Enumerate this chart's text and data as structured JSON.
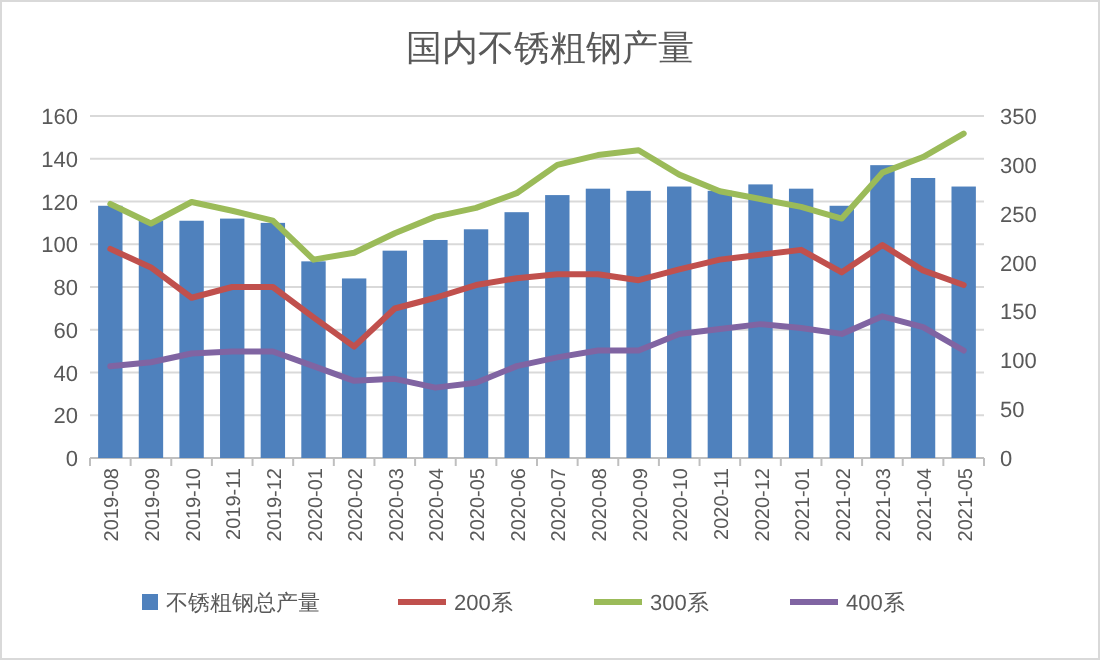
{
  "chart_data": {
    "type": "bar",
    "title": "国内不锈粗钢产量",
    "categories": [
      "2019-08",
      "2019-09",
      "2019-10",
      "2019-11",
      "2019-12",
      "2020-01",
      "2020-02",
      "2020-03",
      "2020-04",
      "2020-05",
      "2020-06",
      "2020-07",
      "2020-08",
      "2020-09",
      "2020-10",
      "2020-11",
      "2020-12",
      "2021-01",
      "2021-02",
      "2021-03",
      "2021-04",
      "2021-05"
    ],
    "series": [
      {
        "name": "不锈粗钢总产量",
        "color": "#4f81bd",
        "values": [
          118,
          111,
          111,
          112,
          110,
          92,
          84,
          97,
          102,
          107,
          115,
          123,
          126,
          125,
          127,
          125,
          128,
          126,
          118,
          137,
          131,
          127
        ]
      },
      {
        "name": "200系",
        "type": "line",
        "axis": "y2",
        "color": "#c0504d",
        "values": [
          214,
          195,
          164,
          175,
          175,
          144,
          114,
          153,
          164,
          177,
          184,
          188,
          188,
          182,
          193,
          203,
          208,
          213,
          190,
          218,
          192,
          177
        ]
      },
      {
        "name": "300系",
        "type": "line",
        "axis": "y2",
        "color": "#9bbb59",
        "values": [
          260,
          240,
          262,
          253,
          243,
          203,
          210,
          230,
          247,
          256,
          271,
          300,
          310,
          315,
          290,
          273,
          265,
          257,
          245,
          292,
          308,
          332
        ]
      },
      {
        "name": "400系",
        "type": "line",
        "axis": "y2",
        "color": "#8064a2",
        "values": [
          94,
          98,
          107,
          109,
          109,
          94,
          79,
          81,
          72,
          77,
          94,
          103,
          110,
          110,
          127,
          132,
          137,
          133,
          127,
          145,
          134,
          110
        ]
      }
    ],
    "ylim": [
      0,
      160
    ],
    "yticks": [
      0,
      20,
      40,
      60,
      80,
      100,
      120,
      140,
      160
    ],
    "y2lim": [
      0,
      350
    ],
    "y2ticks": [
      0,
      50,
      100,
      150,
      200,
      250,
      300,
      350
    ],
    "grid": "y",
    "legend": "bottom"
  }
}
